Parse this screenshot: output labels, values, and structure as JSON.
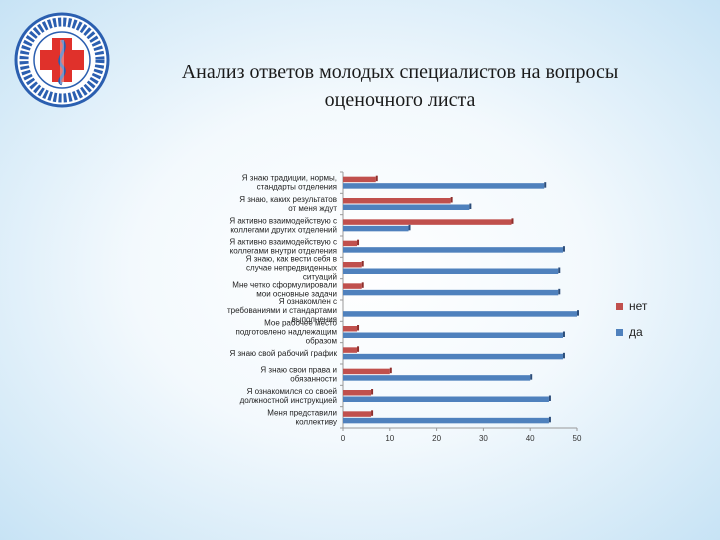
{
  "slide": {
    "title_line1": "Анализ ответов молодых специалистов на вопросы",
    "title_line2": "оценочного листа"
  },
  "logo": {
    "icon": "medical-cross-emblem-icon",
    "text": ""
  },
  "colors": {
    "net": "#c0504d",
    "da": "#4f81bd"
  },
  "chart_data": {
    "type": "bar",
    "orientation": "horizontal",
    "categories": [
      "Я знаю традиции, нормы, стандарты отделения",
      "Я знаю, каких результатов от меня ждут",
      "Я активно взаимодействую с коллегами других отделений",
      "Я активно взаимодействую с коллегами внутри отделения",
      "Я знаю, как вести себя в случае непредвиденных ситуаций",
      "Мне четко сформулировали мои основные задачи",
      "Я ознакомлен с требованиями и стандартами выполнения",
      "Мое рабочее место подготовлено надлежащим образом",
      "Я знаю свой рабочий график",
      "Я знаю свои права и обязанности",
      "Я ознакомился со своей должностной инструкцией",
      "Меня представили коллективу"
    ],
    "series": [
      {
        "name": "нет",
        "values": [
          7,
          23,
          36,
          3,
          4,
          4,
          0,
          3,
          3,
          10,
          6,
          6
        ]
      },
      {
        "name": "да",
        "values": [
          43,
          27,
          14,
          47,
          46,
          46,
          50,
          47,
          47,
          40,
          44,
          44
        ]
      }
    ],
    "xlim": [
      0,
      50
    ],
    "xticks": [
      0,
      10,
      20,
      30,
      40,
      50
    ],
    "legend_position": "right",
    "grid": false
  }
}
